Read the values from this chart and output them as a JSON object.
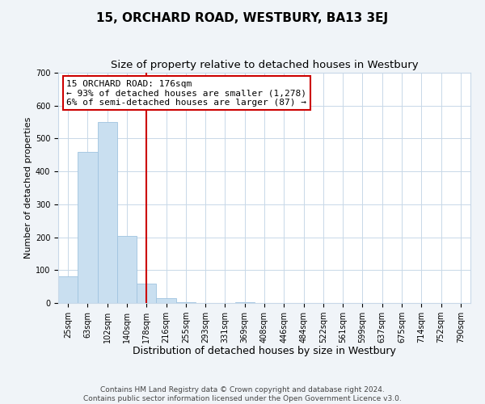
{
  "title": "15, ORCHARD ROAD, WESTBURY, BA13 3EJ",
  "subtitle": "Size of property relative to detached houses in Westbury",
  "xlabel": "Distribution of detached houses by size in Westbury",
  "ylabel": "Number of detached properties",
  "bar_labels": [
    "25sqm",
    "63sqm",
    "102sqm",
    "140sqm",
    "178sqm",
    "216sqm",
    "255sqm",
    "293sqm",
    "331sqm",
    "369sqm",
    "408sqm",
    "446sqm",
    "484sqm",
    "522sqm",
    "561sqm",
    "599sqm",
    "637sqm",
    "675sqm",
    "714sqm",
    "752sqm",
    "790sqm"
  ],
  "bar_values": [
    80,
    460,
    550,
    205,
    58,
    15,
    3,
    0,
    0,
    3,
    0,
    0,
    0,
    0,
    0,
    0,
    0,
    0,
    0,
    0,
    0
  ],
  "bar_color": "#c9dff0",
  "bar_edge_color": "#a0c4e0",
  "vline_x_index": 4,
  "vline_color": "#cc0000",
  "annotation_title": "15 ORCHARD ROAD: 176sqm",
  "annotation_line1": "← 93% of detached houses are smaller (1,278)",
  "annotation_line2": "6% of semi-detached houses are larger (87) →",
  "annotation_box_color": "#ffffff",
  "annotation_box_edge": "#cc0000",
  "ylim": [
    0,
    700
  ],
  "yticks": [
    0,
    100,
    200,
    300,
    400,
    500,
    600,
    700
  ],
  "footer_line1": "Contains HM Land Registry data © Crown copyright and database right 2024.",
  "footer_line2": "Contains public sector information licensed under the Open Government Licence v3.0.",
  "background_color": "#f0f4f8",
  "plot_bg_color": "#ffffff",
  "grid_color": "#c8d8e8",
  "title_fontsize": 11,
  "subtitle_fontsize": 9.5,
  "xlabel_fontsize": 9,
  "ylabel_fontsize": 8,
  "tick_fontsize": 7,
  "footer_fontsize": 6.5,
  "ann_fontsize": 8
}
